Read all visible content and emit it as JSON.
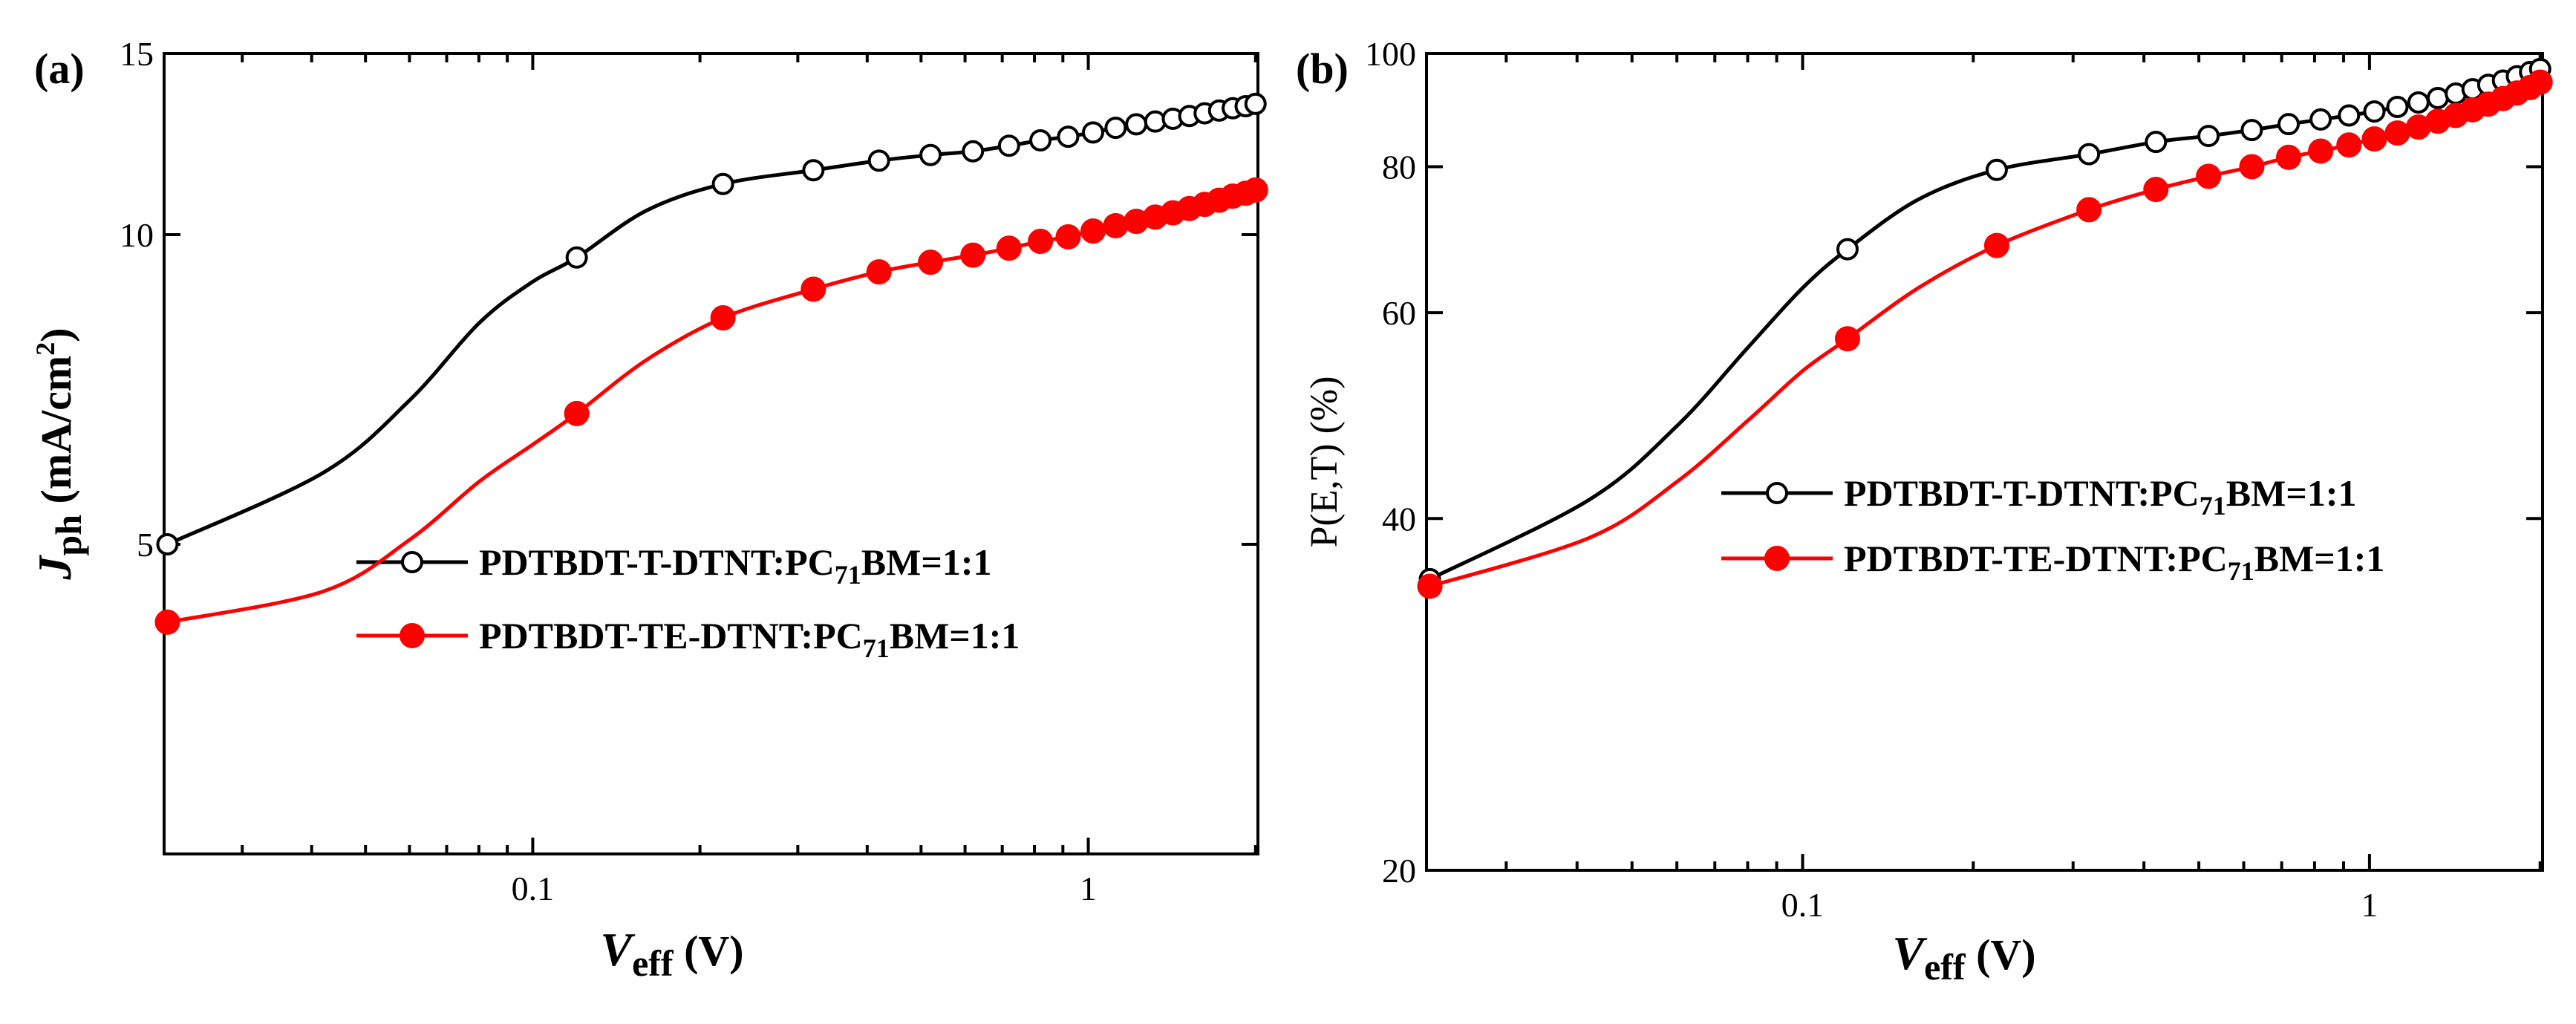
{
  "chart_data": [
    {
      "type": "line",
      "panel_label": "(a)",
      "xlabel": {
        "italic": "V",
        "sub": "eff",
        "rest": " (V)"
      },
      "ylabel": {
        "italic": "J",
        "sub": "ph",
        "rest": " (mA/cm",
        "sup": "2",
        "close": ")"
      },
      "x_scale": "log",
      "y_scale": "log",
      "xlim": [
        0.0217,
        2.02
      ],
      "ylim": [
        2.5,
        15
      ],
      "x_ticks": [
        0.1,
        1
      ],
      "x_tick_labels": [
        "0.1",
        "1"
      ],
      "y_ticks": [
        5,
        10,
        15
      ],
      "y_tick_labels": [
        "5",
        "10",
        "15"
      ],
      "legend": {
        "placement": "center-right"
      },
      "series": [
        {
          "name": {
            "main": "PDTBDT-T-DTNT:PC",
            "sub": "71",
            "tail": "BM=1:1"
          },
          "color": "#000000",
          "marker": "open-circle",
          "x": [
            0.022,
            0.042,
            0.06,
            0.08,
            0.1,
            0.12,
            0.16,
            0.22,
            0.32,
            0.42,
            0.52,
            0.62,
            0.72,
            0.82,
            0.92,
            1.02,
            1.12,
            1.22,
            1.32,
            1.42,
            1.52,
            1.62,
            1.72,
            1.82,
            1.92,
            2.0
          ],
          "y": [
            5.0,
            5.87,
            6.9,
            8.2,
            9.0,
            9.5,
            10.55,
            11.2,
            11.55,
            11.8,
            11.95,
            12.05,
            12.2,
            12.35,
            12.45,
            12.57,
            12.7,
            12.8,
            12.88,
            12.96,
            13.04,
            13.12,
            13.2,
            13.27,
            13.33,
            13.4
          ],
          "marker_x": [
            0.022,
            0.12,
            0.22,
            0.32,
            0.42,
            0.52,
            0.62,
            0.72,
            0.82,
            0.92,
            1.02,
            1.12,
            1.22,
            1.32,
            1.42,
            1.52,
            1.62,
            1.72,
            1.82,
            1.92,
            2.0
          ]
        },
        {
          "name": {
            "main": "PDTBDT-TE-DTNT:PC",
            "sub": "71",
            "tail": "BM=1:1"
          },
          "color": "#ff0000",
          "marker": "filled-circle",
          "x": [
            0.022,
            0.042,
            0.06,
            0.08,
            0.1,
            0.12,
            0.16,
            0.22,
            0.32,
            0.42,
            0.52,
            0.62,
            0.72,
            0.82,
            0.92,
            1.02,
            1.12,
            1.22,
            1.32,
            1.42,
            1.52,
            1.62,
            1.72,
            1.82,
            1.92,
            2.0
          ],
          "y": [
            4.2,
            4.5,
            5.05,
            5.75,
            6.25,
            6.7,
            7.55,
            8.3,
            8.85,
            9.2,
            9.4,
            9.55,
            9.7,
            9.85,
            9.95,
            10.08,
            10.2,
            10.3,
            10.4,
            10.5,
            10.6,
            10.7,
            10.8,
            10.9,
            10.97,
            11.05
          ],
          "marker_x": [
            0.022,
            0.12,
            0.22,
            0.32,
            0.42,
            0.52,
            0.62,
            0.72,
            0.82,
            0.92,
            1.02,
            1.12,
            1.22,
            1.32,
            1.42,
            1.52,
            1.62,
            1.72,
            1.82,
            1.92,
            2.0
          ]
        }
      ]
    },
    {
      "type": "line",
      "panel_label": "(b)",
      "xlabel": {
        "italic": "V",
        "sub": "eff",
        "rest": " (V)"
      },
      "ylabel": {
        "text": "P(E,T) (%)"
      },
      "x_scale": "log",
      "y_scale": "log",
      "xlim": [
        0.0217,
        2.02
      ],
      "ylim": [
        20,
        100
      ],
      "x_ticks": [
        0.1,
        1
      ],
      "x_tick_labels": [
        "0.1",
        "1"
      ],
      "y_ticks": [
        20,
        40,
        60,
        80,
        100
      ],
      "y_tick_labels": [
        "20",
        "40",
        "60",
        "80",
        "100"
      ],
      "legend": {
        "placement": "center-right"
      },
      "series": [
        {
          "name": {
            "main": "PDTBDT-T-DTNT:PC",
            "sub": "71",
            "tail": "BM=1:1"
          },
          "color": "#000000",
          "marker": "open-circle",
          "x": [
            0.022,
            0.042,
            0.06,
            0.08,
            0.1,
            0.12,
            0.16,
            0.22,
            0.32,
            0.42,
            0.52,
            0.62,
            0.72,
            0.82,
            0.92,
            1.02,
            1.12,
            1.22,
            1.32,
            1.42,
            1.52,
            1.62,
            1.72,
            1.82,
            1.92,
            2.0
          ],
          "y": [
            35.5,
            41.5,
            48.0,
            56.0,
            63.0,
            68.0,
            75.0,
            79.5,
            82.0,
            84.0,
            85.0,
            86.0,
            87.0,
            87.8,
            88.5,
            89.2,
            90.0,
            90.8,
            91.6,
            92.4,
            93.2,
            94.0,
            94.8,
            95.6,
            96.4,
            97.0
          ],
          "marker_x": [
            0.022,
            0.12,
            0.22,
            0.32,
            0.42,
            0.52,
            0.62,
            0.72,
            0.82,
            0.92,
            1.02,
            1.12,
            1.22,
            1.32,
            1.42,
            1.52,
            1.62,
            1.72,
            1.82,
            1.92,
            2.0
          ]
        },
        {
          "name": {
            "main": "PDTBDT-TE-DTNT:PC",
            "sub": "71",
            "tail": "BM=1:1"
          },
          "color": "#ff0000",
          "marker": "filled-circle",
          "x": [
            0.022,
            0.042,
            0.06,
            0.08,
            0.1,
            0.12,
            0.16,
            0.22,
            0.32,
            0.42,
            0.52,
            0.62,
            0.72,
            0.82,
            0.92,
            1.02,
            1.12,
            1.22,
            1.32,
            1.42,
            1.52,
            1.62,
            1.72,
            1.82,
            1.92,
            2.0
          ],
          "y": [
            35.0,
            38.5,
            43.0,
            48.5,
            53.5,
            57.0,
            63.0,
            68.5,
            73.5,
            76.5,
            78.5,
            80.0,
            81.5,
            82.5,
            83.5,
            84.5,
            85.5,
            86.5,
            87.5,
            88.5,
            89.5,
            90.5,
            91.5,
            92.5,
            93.5,
            94.5
          ],
          "marker_x": [
            0.022,
            0.12,
            0.22,
            0.32,
            0.42,
            0.52,
            0.62,
            0.72,
            0.82,
            0.92,
            1.02,
            1.12,
            1.22,
            1.32,
            1.42,
            1.52,
            1.62,
            1.72,
            1.82,
            1.92,
            2.0
          ]
        }
      ]
    }
  ]
}
